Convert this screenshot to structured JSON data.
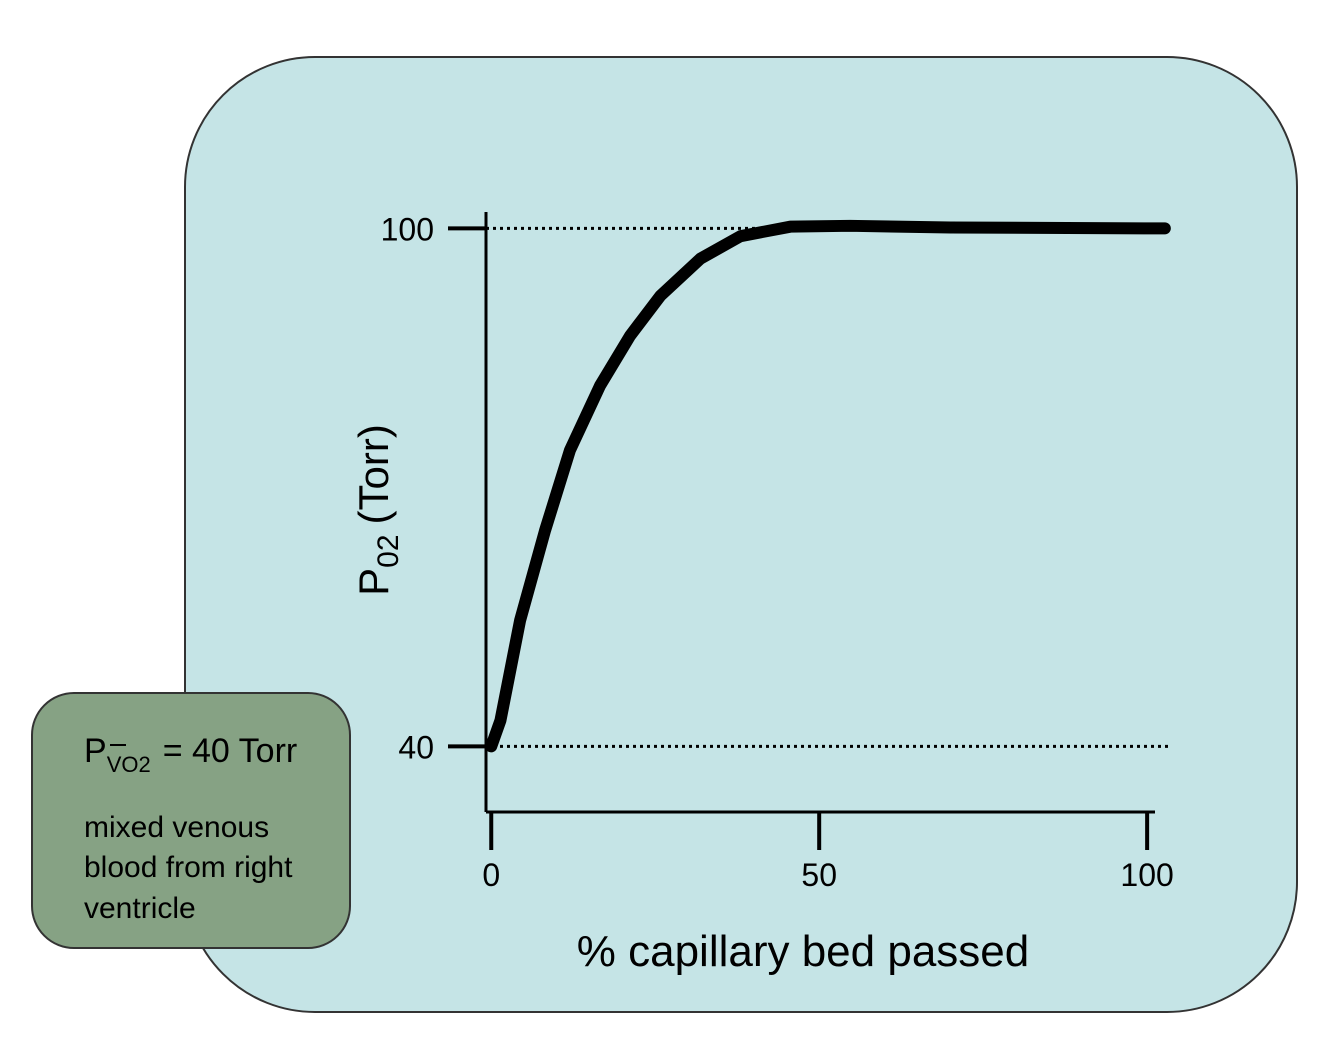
{
  "chart_data": {
    "type": "line",
    "x_label": "% capillary bed passed",
    "y_label": {
      "symbol": "P",
      "subscript": "02",
      "unit": "(Torr)"
    },
    "x": [
      0,
      1.4,
      4.4,
      8.2,
      12,
      16.6,
      21.2,
      25.8,
      31.9,
      38,
      45.6,
      54.7,
      70,
      102.7
    ],
    "values": [
      40,
      43,
      54.6,
      65,
      74.3,
      81.8,
      87.6,
      92.2,
      96.5,
      99.1,
      100.2,
      100.3,
      100.1,
      100
    ],
    "color": "#000000",
    "xlim": [
      -0.8,
      101.2
    ],
    "xticks": [
      0,
      50,
      100
    ],
    "ylim": [
      32.4,
      101.9
    ],
    "yticks": [
      40,
      100
    ],
    "grid": "dotted",
    "annotation": {
      "symbol": "P",
      "subscript": "VO2",
      "text": "= 40 Torr",
      "note": [
        "mixed venous",
        "blood from right",
        "ventricle"
      ]
    }
  }
}
